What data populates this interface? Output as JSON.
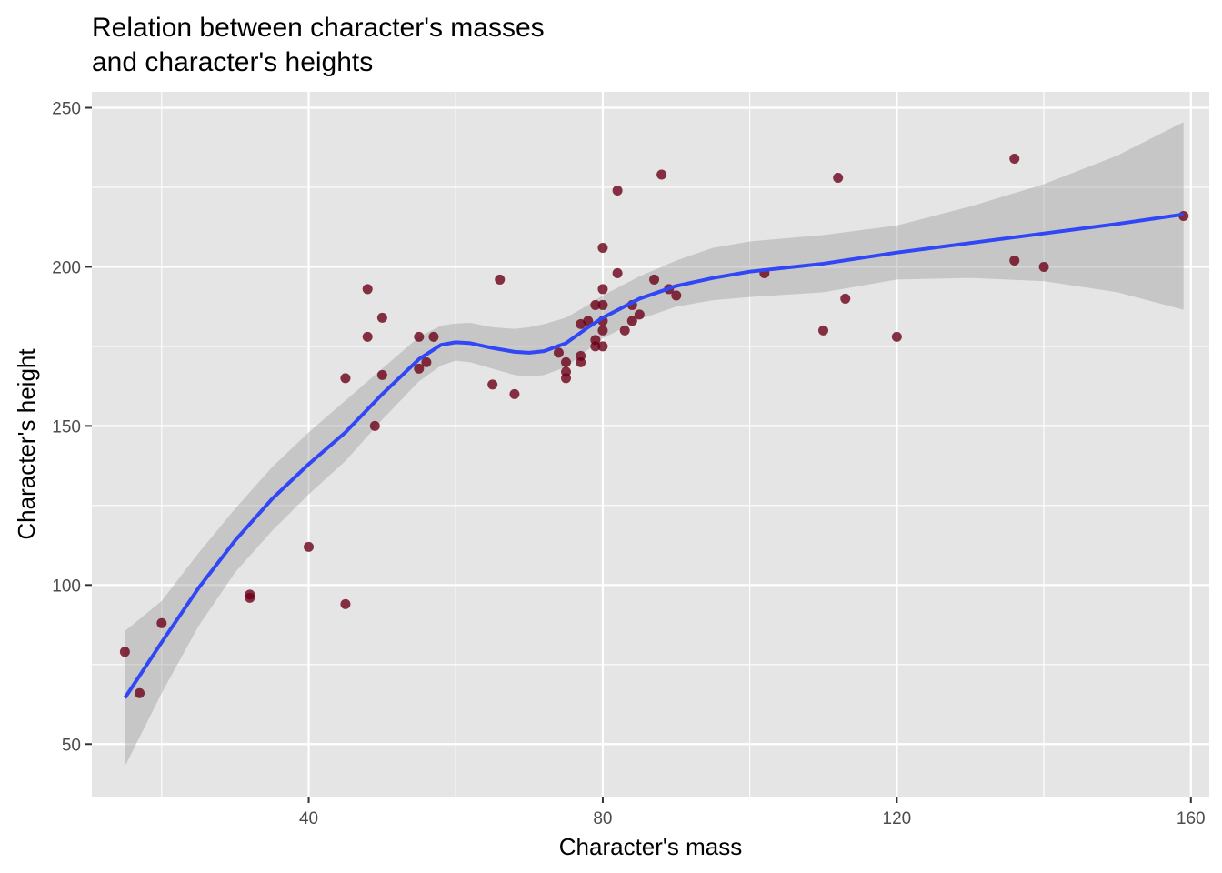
{
  "chart_data": {
    "type": "scatter",
    "title": [
      "Relation between character's masses",
      "and character's heights"
    ],
    "xlabel": "Character's mass",
    "ylabel": "Character's height",
    "xlim": [
      10.5,
      162.5
    ],
    "ylim": [
      33.5,
      255
    ],
    "x_ticks": [
      40,
      80,
      120,
      160
    ],
    "y_ticks": [
      50,
      100,
      150,
      200,
      250
    ],
    "x_minor": [
      20,
      60,
      100,
      140
    ],
    "y_minor": [
      75,
      125,
      175,
      225
    ],
    "grid": true,
    "legend": "none",
    "colors": {
      "panel": "#e5e5e5",
      "grid": "#ffffff",
      "points": "#6b0018",
      "smooth": "#3146f5",
      "ribbon": "#999999"
    },
    "series": [
      {
        "type": "scatter",
        "points": [
          [
            15,
            79
          ],
          [
            17,
            66
          ],
          [
            20,
            88
          ],
          [
            32,
            96
          ],
          [
            32,
            97
          ],
          [
            40,
            112
          ],
          [
            45,
            94
          ],
          [
            45,
            165
          ],
          [
            48,
            193
          ],
          [
            48,
            178
          ],
          [
            49,
            150
          ],
          [
            50,
            166
          ],
          [
            50,
            184
          ],
          [
            55,
            178
          ],
          [
            55,
            168
          ],
          [
            56,
            170
          ],
          [
            57,
            178
          ],
          [
            65,
            163
          ],
          [
            66,
            196
          ],
          [
            68,
            160
          ],
          [
            74,
            173
          ],
          [
            75,
            170
          ],
          [
            75,
            167
          ],
          [
            75,
            165
          ],
          [
            77,
            182
          ],
          [
            77,
            172
          ],
          [
            77,
            170
          ],
          [
            78,
            183
          ],
          [
            79,
            188
          ],
          [
            79,
            177
          ],
          [
            79,
            175
          ],
          [
            80,
            206
          ],
          [
            80,
            193
          ],
          [
            80,
            188
          ],
          [
            80,
            183
          ],
          [
            80,
            180
          ],
          [
            80,
            175
          ],
          [
            82,
            224
          ],
          [
            82,
            198
          ],
          [
            83,
            180
          ],
          [
            84,
            188
          ],
          [
            84,
            183
          ],
          [
            85,
            185
          ],
          [
            87,
            196
          ],
          [
            88,
            229
          ],
          [
            89,
            193
          ],
          [
            90,
            191
          ],
          [
            102,
            198
          ],
          [
            110,
            180
          ],
          [
            112,
            228
          ],
          [
            113,
            190
          ],
          [
            120,
            178
          ],
          [
            136,
            234
          ],
          [
            136,
            202
          ],
          [
            140,
            200
          ],
          [
            159,
            216
          ]
        ]
      },
      {
        "type": "line",
        "points": [
          [
            15,
            64.5
          ],
          [
            20,
            82
          ],
          [
            25,
            99
          ],
          [
            30,
            114
          ],
          [
            35,
            127
          ],
          [
            40,
            138
          ],
          [
            45,
            148
          ],
          [
            50,
            160
          ],
          [
            55,
            171
          ],
          [
            58,
            175.5
          ],
          [
            60,
            176.3
          ],
          [
            62,
            176
          ],
          [
            65,
            174.5
          ],
          [
            68,
            173.3
          ],
          [
            70,
            173
          ],
          [
            72,
            173.5
          ],
          [
            75,
            176
          ],
          [
            78,
            181
          ],
          [
            80,
            184
          ],
          [
            85,
            190
          ],
          [
            90,
            194
          ],
          [
            95,
            196.5
          ],
          [
            100,
            198.5
          ],
          [
            110,
            201
          ],
          [
            120,
            204.5
          ],
          [
            130,
            207.5
          ],
          [
            140,
            210.5
          ],
          [
            150,
            213.5
          ],
          [
            159,
            216.5
          ]
        ]
      },
      {
        "type": "band",
        "upper": [
          [
            15,
            85.5
          ],
          [
            20,
            95
          ],
          [
            25,
            110
          ],
          [
            30,
            124
          ],
          [
            35,
            137
          ],
          [
            40,
            148
          ],
          [
            45,
            158
          ],
          [
            50,
            168
          ],
          [
            55,
            178
          ],
          [
            58,
            181.5
          ],
          [
            60,
            182.2
          ],
          [
            62,
            182.4
          ],
          [
            65,
            181
          ],
          [
            68,
            180.5
          ],
          [
            70,
            181
          ],
          [
            72,
            182
          ],
          [
            75,
            184
          ],
          [
            78,
            188
          ],
          [
            80,
            191
          ],
          [
            85,
            197
          ],
          [
            90,
            202
          ],
          [
            95,
            206
          ],
          [
            100,
            208
          ],
          [
            110,
            210
          ],
          [
            120,
            213
          ],
          [
            130,
            219
          ],
          [
            140,
            226
          ],
          [
            150,
            235
          ],
          [
            159,
            245.5
          ]
        ],
        "lower": [
          [
            15,
            43
          ],
          [
            20,
            66
          ],
          [
            25,
            87
          ],
          [
            30,
            104
          ],
          [
            35,
            117
          ],
          [
            40,
            128.5
          ],
          [
            45,
            139
          ],
          [
            50,
            152
          ],
          [
            55,
            164
          ],
          [
            58,
            169
          ],
          [
            60,
            170.5
          ],
          [
            62,
            170
          ],
          [
            65,
            168
          ],
          [
            68,
            166
          ],
          [
            70,
            165.5
          ],
          [
            72,
            166
          ],
          [
            75,
            168.5
          ],
          [
            78,
            174
          ],
          [
            80,
            177.5
          ],
          [
            85,
            183.5
          ],
          [
            90,
            187.5
          ],
          [
            95,
            189.5
          ],
          [
            100,
            190.5
          ],
          [
            110,
            192
          ],
          [
            120,
            196
          ],
          [
            130,
            196.5
          ],
          [
            140,
            195.5
          ],
          [
            150,
            192
          ],
          [
            159,
            186.5
          ]
        ]
      }
    ]
  }
}
